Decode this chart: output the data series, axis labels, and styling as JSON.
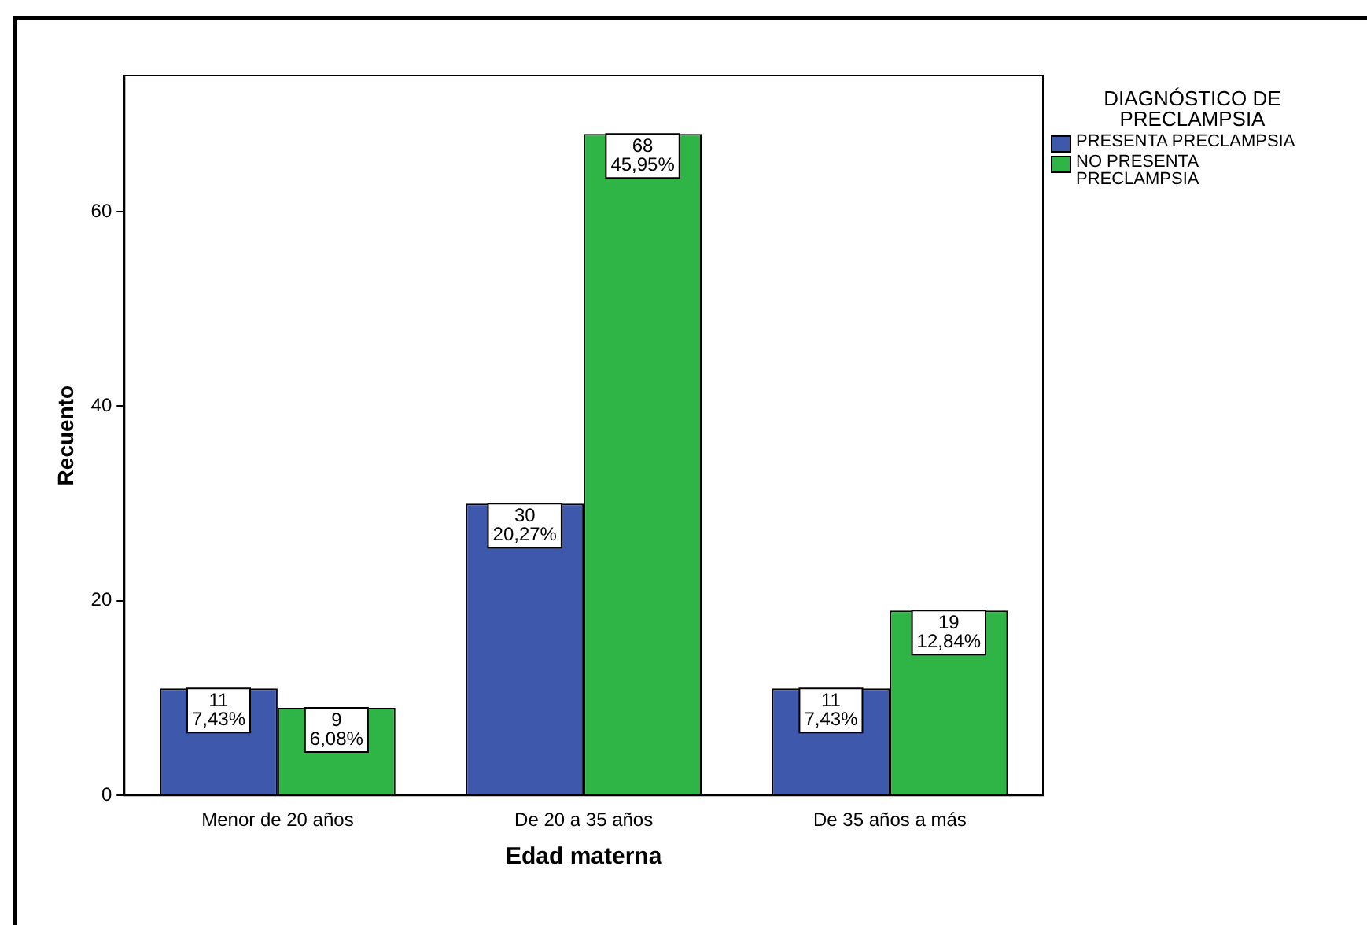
{
  "chart_data": {
    "type": "bar",
    "xlabel": "Edad materna",
    "ylabel": "Recuento",
    "legend_title": "DIAGNÓSTICO DE PRECLAMPSIA",
    "legend": "top right",
    "categories": [
      "Menor de 20 años",
      "De 20 a 35 años",
      "De 35 años a más"
    ],
    "series": [
      {
        "name": "PRESENTA PRECLAMPSIA",
        "color": "#3e58ac",
        "values": [
          11,
          30,
          11
        ],
        "value_labels": [
          "11\n7,43%",
          "30\n20,27%",
          "11\n7,43%"
        ]
      },
      {
        "name": "NO PRESENTA PRECLAMPSIA",
        "color": "#2fb545",
        "values": [
          9,
          68,
          19
        ],
        "value_labels": [
          "9\n6,08%",
          "68\n45,95%",
          "19\n12,84%"
        ]
      }
    ],
    "ylim": [
      0,
      74
    ],
    "yticks": [
      0,
      20,
      40,
      60
    ],
    "grid": false
  }
}
